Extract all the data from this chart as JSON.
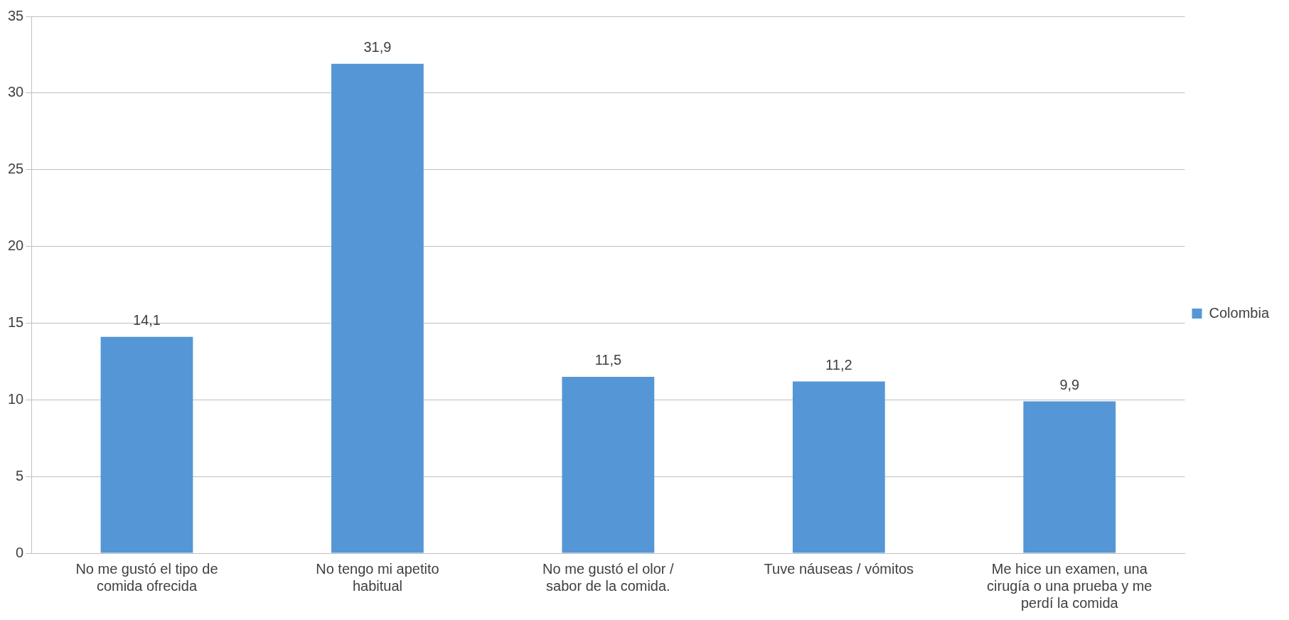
{
  "chart_data": {
    "type": "bar",
    "categories": [
      "No me gustó el tipo de comida ofrecida",
      "No tengo mi apetito habitual",
      "No me gustó el olor / sabor de la comida.",
      "Tuve náuseas / vómitos",
      "Me hice un examen, una cirugía o una prueba y me perdí la comida"
    ],
    "series": [
      {
        "name": "Colombia",
        "color": "#5596d6",
        "values": [
          14.1,
          31.9,
          11.5,
          11.2,
          9.9
        ],
        "value_labels": [
          "14,1",
          "31,9",
          "11,5",
          "11,2",
          "9,9"
        ]
      }
    ],
    "ylim": [
      0,
      35
    ],
    "yticks": [
      0,
      5,
      10,
      15,
      20,
      25,
      30,
      35
    ],
    "grid": "y",
    "legend": "right"
  }
}
